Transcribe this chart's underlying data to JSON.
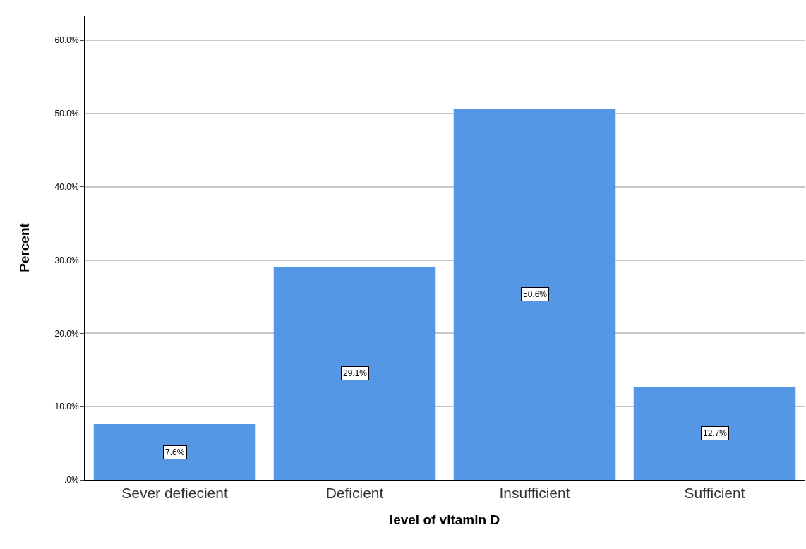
{
  "chart_data": {
    "type": "bar",
    "xlabel": "level of vitamin D",
    "ylabel": "Percent",
    "categories": [
      "Sever defiecient",
      "Deficient",
      "Insufficient",
      "Sufficient"
    ],
    "values": [
      7.6,
      29.1,
      50.6,
      12.7
    ],
    "value_labels": [
      "7.6%",
      "29.1%",
      "50.6%",
      "12.7%"
    ],
    "color": "#5596e5",
    "ylim": [
      0,
      63.4
    ],
    "yticks": [
      {
        "value": 0,
        "label": ".0%"
      },
      {
        "value": 10,
        "label": "10.0%"
      },
      {
        "value": 20,
        "label": "20.0%"
      },
      {
        "value": 30,
        "label": "30.0%"
      },
      {
        "value": 40,
        "label": "40.0%"
      },
      {
        "value": 50,
        "label": "50.0%"
      },
      {
        "value": 60,
        "label": "60.0%"
      }
    ],
    "grid": "y"
  }
}
